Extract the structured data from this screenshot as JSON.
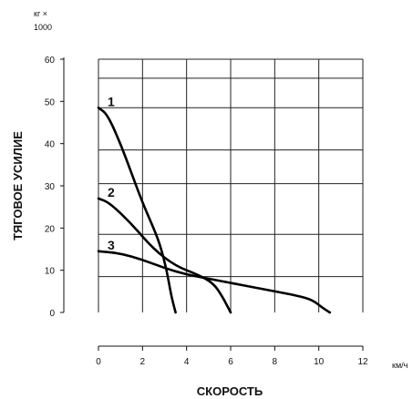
{
  "chart_data": {
    "type": "line",
    "ylabel": "ТЯГОВОЕ УСИЛИЕ",
    "xlabel": "СКОРОСТЬ",
    "y_unit": [
      "кг  ×",
      "1000"
    ],
    "x_unit": "км/ч",
    "xlim": [
      0,
      12
    ],
    "ylim": [
      0,
      60
    ],
    "x_ticks": [
      "0",
      "2",
      "4",
      "6",
      "8",
      "10",
      "12"
    ],
    "y_ticks": [
      "0",
      "10",
      "20",
      "30",
      "40",
      "50",
      "60"
    ],
    "grid": true,
    "series": [
      {
        "name": "1",
        "points": [
          [
            0,
            48.5
          ],
          [
            0.4,
            47
          ],
          [
            1,
            40
          ],
          [
            1.5,
            33
          ],
          [
            2,
            26
          ],
          [
            2.5,
            20
          ],
          [
            2.8,
            16
          ],
          [
            3.1,
            10
          ],
          [
            3.3,
            4
          ],
          [
            3.5,
            0
          ]
        ]
      },
      {
        "name": "2",
        "points": [
          [
            0,
            27
          ],
          [
            0.5,
            26
          ],
          [
            1.5,
            21
          ],
          [
            2.5,
            15
          ],
          [
            3.5,
            11
          ],
          [
            4.5,
            9
          ],
          [
            5.2,
            7
          ],
          [
            5.6,
            4
          ],
          [
            6.0,
            0
          ]
        ]
      },
      {
        "name": "3",
        "points": [
          [
            0,
            14.5
          ],
          [
            1,
            14
          ],
          [
            2,
            12.5
          ],
          [
            3,
            10.5
          ],
          [
            4,
            9
          ],
          [
            5,
            8
          ],
          [
            6,
            7
          ],
          [
            7,
            6
          ],
          [
            8,
            5
          ],
          [
            9,
            4
          ],
          [
            9.7,
            3
          ],
          [
            10.2,
            1
          ],
          [
            10.5,
            0
          ]
        ]
      }
    ]
  }
}
